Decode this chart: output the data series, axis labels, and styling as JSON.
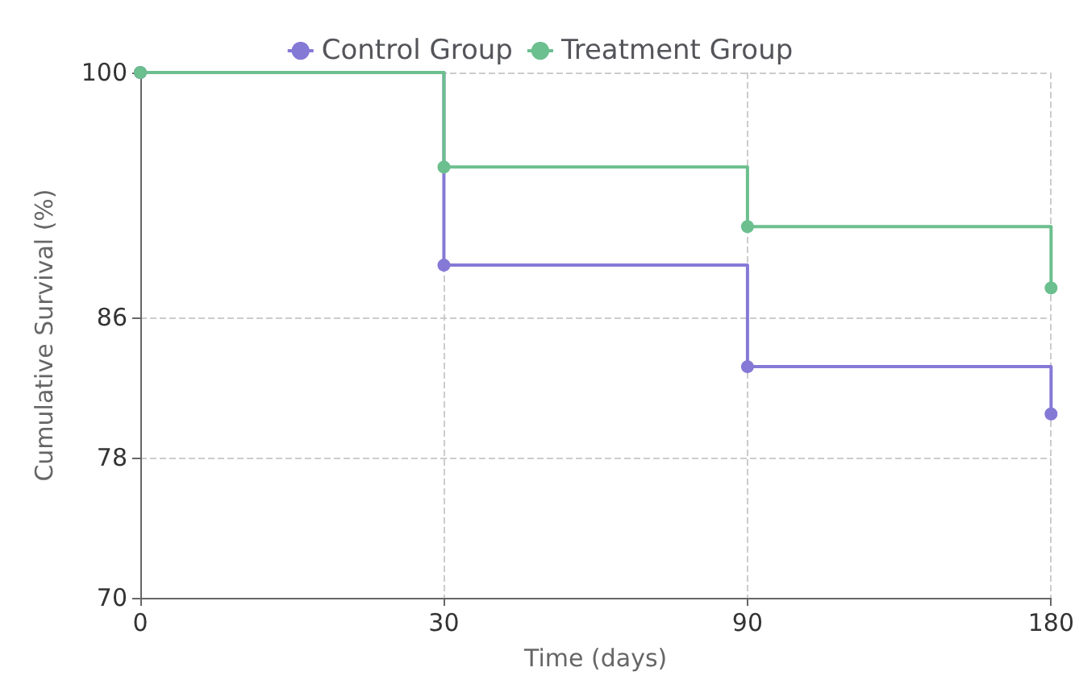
{
  "chart_data": {
    "type": "step",
    "xlabel": "Time (days)",
    "ylabel": "Cumulative Survival (%)",
    "categories": [
      "0",
      "30",
      "90",
      "180"
    ],
    "series": [
      {
        "name": "Control Group",
        "color": "#8579d6",
        "values": [
          100,
          89,
          83.2,
          80.5
        ]
      },
      {
        "name": "Treatment Group",
        "color": "#6cbf8e",
        "values": [
          100,
          94.6,
          91.2,
          87.7
        ]
      }
    ],
    "ylim": [
      70,
      100
    ],
    "yticks": [
      70,
      78,
      86,
      100
    ],
    "grid": true,
    "legend": "top",
    "marker": "circle"
  }
}
